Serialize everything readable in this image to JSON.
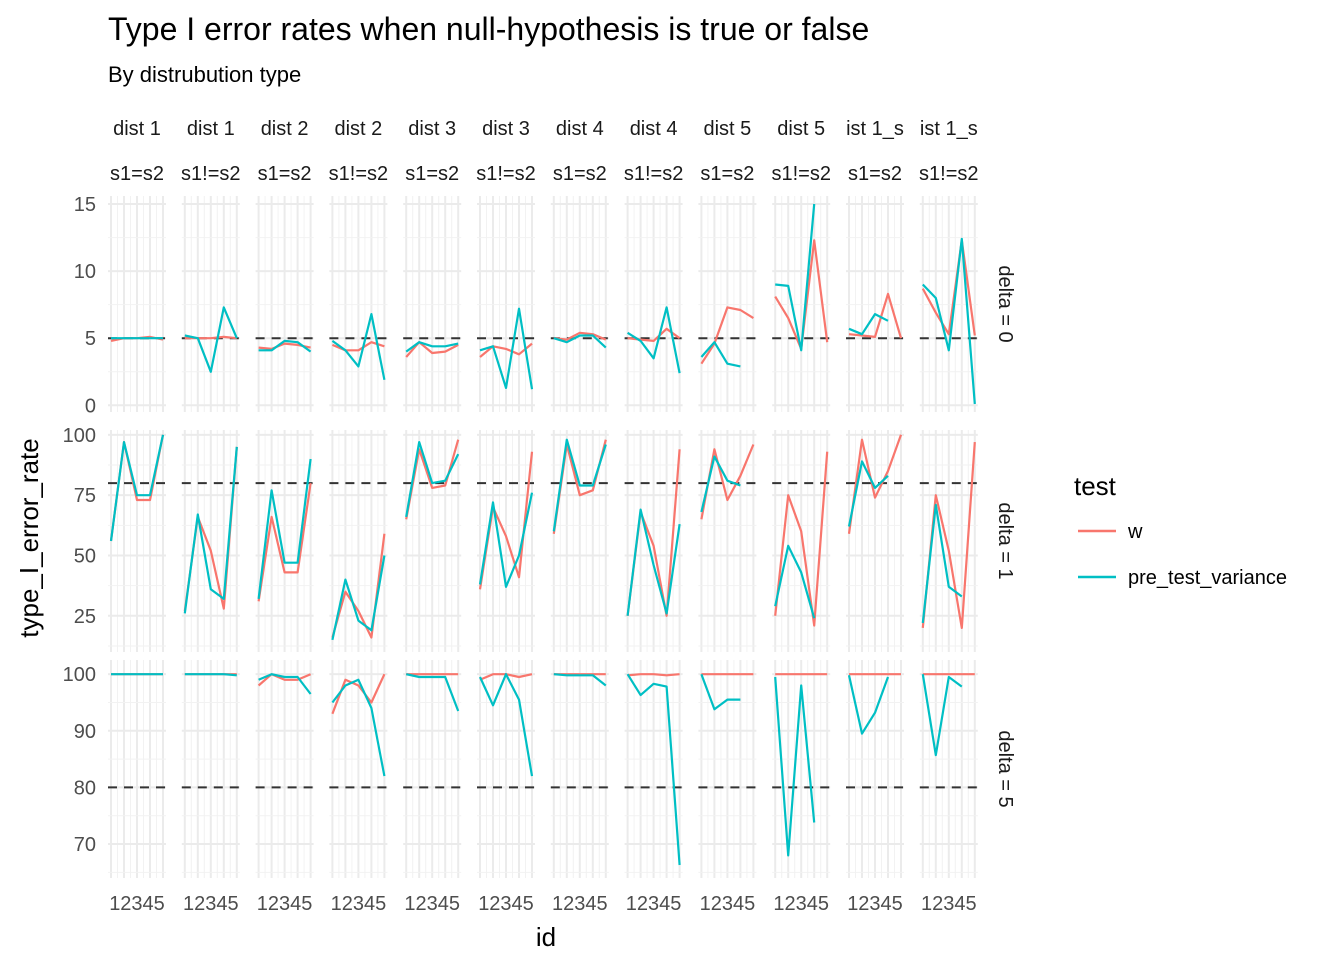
{
  "chart_data": {
    "type": "line",
    "title": "Type I error rates when null-hypothesis is true or false",
    "subtitle": "By distrubution type",
    "xlabel": "id",
    "ylabel": "type_I_error_rate",
    "x": [
      1,
      2,
      3,
      4,
      5
    ],
    "x_tick_label": "12345",
    "columns": [
      "dist 1 s1=s2",
      "dist 1 s1!=s2",
      "dist 2 s1=s2",
      "dist 2 s1!=s2",
      "dist 3 s1=s2",
      "dist 3 s1!=s2",
      "dist 4 s1=s2",
      "dist 4 s1!=s2",
      "dist 5 s1=s2",
      "dist 5 s1!=s2",
      "dist 1_s s1=s2",
      "dist 1_s s1!=s2"
    ],
    "column_strip_top": [
      "dist 1",
      "dist 1",
      "dist 2",
      "dist 2",
      "dist 3",
      "dist 3",
      "dist 4",
      "dist 4",
      "dist 5",
      "dist 5",
      "ist 1_s",
      "ist 1_s"
    ],
    "column_strip_bottom": [
      "s1=s2",
      "s1!=s2",
      "s1=s2",
      "s1!=s2",
      "s1=s2",
      "s1!=s2",
      "s1=s2",
      "s1!=s2",
      "s1=s2",
      "s1!=s2",
      "s1=s2",
      "s1!=s2"
    ],
    "legend": {
      "title": "test",
      "placement": "right",
      "entries": [
        {
          "name": "w",
          "color": "#F8766D"
        },
        {
          "name": "pre_test_variance",
          "color": "#00BFC4"
        }
      ]
    },
    "grid": true,
    "reference_line_style": "dashed",
    "rows": [
      {
        "label": "delta = 0",
        "ylim": [
          -0.5,
          15.6
        ],
        "yticks": [
          0,
          5,
          10,
          15
        ],
        "reference": 5,
        "series": {
          "w": [
            [
              4.8,
              5.0,
              5.0,
              5.1,
              4.9
            ],
            [
              5.0,
              5.0,
              5.0,
              5.1,
              5.0
            ],
            [
              4.3,
              4.2,
              4.6,
              4.5,
              4.3
            ],
            [
              4.5,
              4.1,
              4.1,
              4.7,
              4.4
            ],
            [
              3.6,
              4.7,
              3.9,
              4.0,
              4.5
            ],
            [
              3.6,
              4.4,
              4.2,
              3.8,
              4.6
            ],
            [
              5.0,
              4.9,
              5.4,
              5.3,
              4.9
            ],
            [
              5.0,
              4.9,
              4.8,
              5.7,
              5.0
            ],
            [
              3.1,
              4.6,
              7.3,
              7.1,
              6.5
            ],
            [
              8.1,
              6.5,
              4.2,
              12.3,
              4.7
            ],
            [
              5.3,
              5.2,
              5.1,
              8.3,
              5.0
            ],
            [
              8.7,
              6.9,
              5.3,
              12.3,
              5.2
            ]
          ],
          "pre_test_variance": [
            [
              5.0,
              5.0,
              5.0,
              5.0,
              5.0
            ],
            [
              5.2,
              5.0,
              2.5,
              7.3,
              5.0
            ],
            [
              4.1,
              4.1,
              4.8,
              4.7,
              4.0
            ],
            [
              4.8,
              4.1,
              2.9,
              6.8,
              1.9
            ],
            [
              4.0,
              4.7,
              4.4,
              4.4,
              4.6
            ],
            [
              4.1,
              4.4,
              1.3,
              7.2,
              1.2
            ],
            [
              5.0,
              4.7,
              5.2,
              5.2,
              4.3
            ],
            [
              5.4,
              4.8,
              3.5,
              7.3,
              2.4
            ],
            [
              3.6,
              4.7,
              3.1,
              2.9,
              null
            ],
            [
              9.0,
              8.9,
              4.1,
              15.0,
              null
            ],
            [
              5.7,
              5.3,
              6.8,
              6.3,
              null
            ],
            [
              9.0,
              8.0,
              4.1,
              12.4,
              0.1
            ]
          ]
        }
      },
      {
        "label": "delta = 1",
        "ylim": [
          10,
          102
        ],
        "yticks": [
          25,
          50,
          75,
          100
        ],
        "reference": 80,
        "series": {
          "w": [
            [
              56,
              97,
              73,
              73,
              100
            ],
            [
              27,
              66,
              52,
              28,
              95
            ],
            [
              31,
              66,
              43,
              43,
              80
            ],
            [
              16,
              35,
              27,
              16,
              59
            ],
            [
              65,
              94,
              78,
              79,
              98
            ],
            [
              36,
              70,
              58,
              41,
              93
            ],
            [
              59,
              96,
              75,
              77,
              98
            ],
            [
              25,
              68,
              54,
              25,
              94
            ],
            [
              65,
              94,
              73,
              83,
              96
            ],
            [
              25,
              75,
              60,
              21,
              93
            ],
            [
              59,
              98,
              74,
              85,
              100
            ],
            [
              20,
              75,
              52,
              20,
              97
            ]
          ],
          "pre_test_variance": [
            [
              56,
              97,
              75,
              75,
              100
            ],
            [
              26,
              67,
              36,
              32,
              95
            ],
            [
              32,
              77,
              47,
              47,
              90
            ],
            [
              15,
              40,
              23,
              19,
              50
            ],
            [
              66,
              97,
              80,
              81,
              92
            ],
            [
              38,
              72,
              37,
              50,
              76
            ],
            [
              60,
              98,
              79,
              79,
              96
            ],
            [
              25,
              69,
              46,
              26,
              63
            ],
            [
              68,
              91,
              81,
              79,
              null
            ],
            [
              29,
              54,
              43,
              24,
              null
            ],
            [
              62,
              89,
              78,
              83,
              null
            ],
            [
              22,
              71,
              37,
              33,
              null
            ]
          ]
        }
      },
      {
        "label": "delta = 5",
        "ylim": [
          64,
          102.5
        ],
        "yticks": [
          70,
          80,
          90,
          100
        ],
        "reference": 80,
        "series": {
          "w": [
            [
              100,
              100,
              100,
              100,
              100
            ],
            [
              100,
              100,
              100,
              100,
              100
            ],
            [
              98,
              100,
              99,
              99,
              100
            ],
            [
              93,
              99,
              98,
              95,
              100
            ],
            [
              100,
              100,
              100,
              100,
              100
            ],
            [
              99,
              100,
              100,
              99.5,
              100
            ],
            [
              100,
              100,
              100,
              100,
              100
            ],
            [
              99.8,
              100,
              100,
              99.8,
              100
            ],
            [
              100,
              100,
              100,
              100,
              100
            ],
            [
              100,
              100,
              100,
              100,
              100
            ],
            [
              100,
              100,
              100,
              100,
              100
            ],
            [
              100,
              100,
              100,
              100,
              100
            ]
          ],
          "pre_test_variance": [
            [
              100,
              100,
              100,
              100,
              100
            ],
            [
              100,
              100,
              100,
              100,
              99.8
            ],
            [
              99,
              100,
              99.5,
              99.5,
              96.5
            ],
            [
              95,
              98,
              99,
              94,
              82
            ],
            [
              100,
              99.5,
              99.5,
              99.5,
              93.5
            ],
            [
              99.5,
              94.5,
              100,
              95.5,
              82
            ],
            [
              100,
              99.8,
              99.8,
              99.8,
              98
            ],
            [
              100,
              96.3,
              98.3,
              97.8,
              66.3
            ],
            [
              100,
              93.8,
              95.5,
              95.5,
              null
            ],
            [
              99.5,
              68,
              98,
              73.8,
              null
            ],
            [
              99.8,
              89.5,
              93.2,
              99.5,
              null
            ],
            [
              100,
              85.7,
              99.5,
              97.8,
              null
            ]
          ]
        }
      }
    ]
  }
}
